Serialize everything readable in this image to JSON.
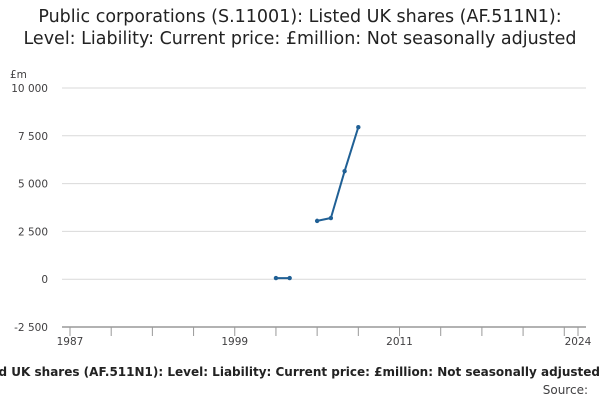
{
  "chart_data": {
    "type": "line",
    "title": "Public corporations (S.11001): Listed UK shares (AF.511N1): Level: Liability: Current price: £million: Not seasonally adjusted",
    "ylabel": "£m",
    "xlabel": "",
    "ylim": [
      -2500,
      10000
    ],
    "xlim": [
      1987,
      2024
    ],
    "y_ticks": [
      {
        "value": 10000,
        "label": "10 000"
      },
      {
        "value": 7500,
        "label": "7 500"
      },
      {
        "value": 5000,
        "label": "5 000"
      },
      {
        "value": 2500,
        "label": "2 500"
      },
      {
        "value": 0,
        "label": "0"
      },
      {
        "value": -2500,
        "label": "-2 500"
      }
    ],
    "x_ticks": [
      {
        "value": 1987,
        "label": "1987"
      },
      {
        "value": 1999,
        "label": "1999"
      },
      {
        "value": 2011,
        "label": "2011"
      },
      {
        "value": 2024,
        "label": "2024"
      }
    ],
    "grid": true,
    "series": [
      {
        "name": "Public corporations (S.11001): Listed UK shares (AF.511N1): Level: Liability: Current price: £million: Not seasonally adjusted",
        "color": "#206095",
        "segments": [
          [
            {
              "x": 2002,
              "y": 60
            },
            {
              "x": 2003,
              "y": 60
            }
          ],
          [
            {
              "x": 2005,
              "y": 3050
            },
            {
              "x": 2006,
              "y": 3200
            },
            {
              "x": 2007,
              "y": 5650
            },
            {
              "x": 2008,
              "y": 7950
            }
          ]
        ]
      }
    ],
    "source_label": "Source:"
  }
}
